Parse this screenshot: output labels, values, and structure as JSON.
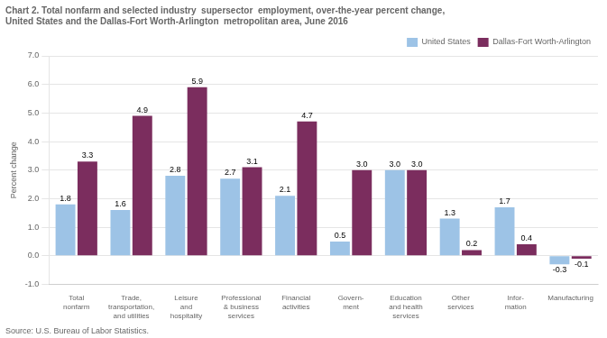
{
  "chart_data": {
    "type": "bar",
    "title": [
      "Chart 2. Total nonfarm and selected industry  supersector  employment, over-the-year percent change,",
      "United States and the Dallas-Fort Worth-Arlington  metropolitan area, June 2016"
    ],
    "annotations": [
      "Source: U.S. Bureau of Labor Statistics."
    ],
    "ylabel": "Percent change",
    "categories": [
      "Total\nnonfarm",
      "Trade,\ntransportation,\nand utilities",
      "Leisure\nand\nhospitality",
      "Professional\n& business\nservices",
      "Financial\nactivities",
      "Govern-\nment",
      "Education\nand health\nservices",
      "Other\nservices",
      "Infor-\nmation",
      "Manufacturing"
    ],
    "series": [
      {
        "name": "United States",
        "color": "#9DC3E6",
        "values": [
          1.8,
          1.6,
          2.8,
          2.7,
          2.1,
          0.5,
          3.0,
          1.3,
          1.7,
          -0.3
        ],
        "value_labels": [
          "1.8",
          "1.6",
          "2.8",
          "2.7",
          "2.1",
          "0.5",
          "3.0",
          "1.3",
          "1.7",
          "-0.3"
        ]
      },
      {
        "name": "Dallas-Fort Worth-Arlington",
        "color": "#7B2D5E",
        "values": [
          3.3,
          4.9,
          5.9,
          3.1,
          4.7,
          3.0,
          3.0,
          0.2,
          0.4,
          -0.1
        ],
        "value_labels": [
          "3.3",
          "4.9",
          "5.9",
          "3.1",
          "4.7",
          "3.0",
          "3.0",
          "0.2",
          "0.4",
          "-0.1"
        ]
      }
    ],
    "ylim": [
      -1.0,
      7.0
    ],
    "yticks": [
      {
        "value": -1.0,
        "label": "-1.0"
      },
      {
        "value": 0.0,
        "label": "0.0"
      },
      {
        "value": 1.0,
        "label": "1.0"
      },
      {
        "value": 2.0,
        "label": "2.0"
      },
      {
        "value": 3.0,
        "label": "3.0"
      },
      {
        "value": 4.0,
        "label": "4.0"
      },
      {
        "value": 5.0,
        "label": "5.0"
      },
      {
        "value": 6.0,
        "label": "6.0"
      },
      {
        "value": 7.0,
        "label": "7.0"
      }
    ],
    "grid": true,
    "legend": "upper right",
    "data_labels": true
  }
}
